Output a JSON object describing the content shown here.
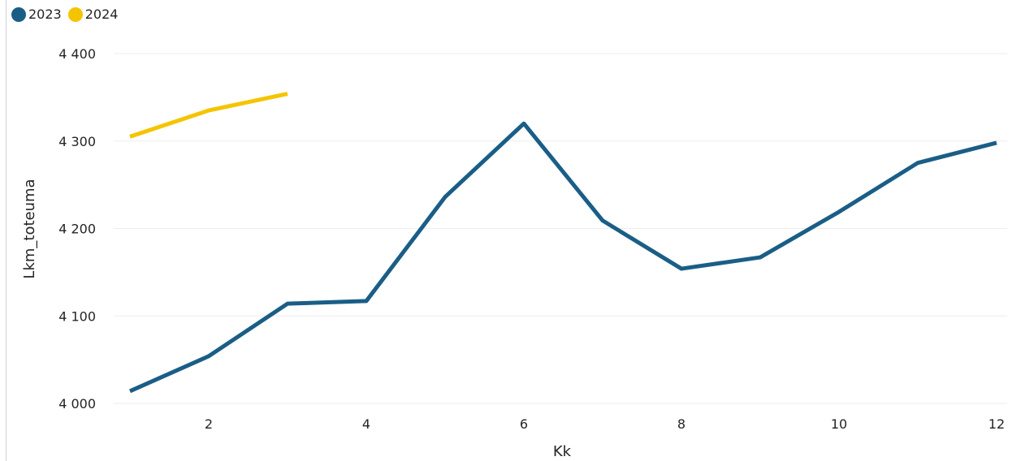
{
  "chart_data": {
    "type": "line",
    "xlabel": "Kk",
    "ylabel": "Lkm_toteuma",
    "xlim": [
      1,
      12
    ],
    "ylim": [
      4000,
      4400
    ],
    "x_ticks": [
      2,
      4,
      6,
      8,
      10,
      12
    ],
    "y_ticks": [
      4000,
      4100,
      4200,
      4300,
      4400
    ],
    "y_tick_labels": [
      "4 000",
      "4 100",
      "4 200",
      "4 300",
      "4 400"
    ],
    "grid": true,
    "legend_position": "top-left",
    "series": [
      {
        "name": "2023",
        "color": "#1a5e86",
        "x": [
          1,
          2,
          3,
          4,
          5,
          6,
          7,
          8,
          9,
          10,
          11,
          12
        ],
        "values": [
          4014,
          4054,
          4114,
          4117,
          4236,
          4320,
          4209,
          4154,
          4167,
          4219,
          4275,
          4298
        ]
      },
      {
        "name": "2024",
        "color": "#f5c400",
        "x": [
          1,
          2,
          3
        ],
        "values": [
          4305,
          4335,
          4354
        ]
      }
    ]
  }
}
